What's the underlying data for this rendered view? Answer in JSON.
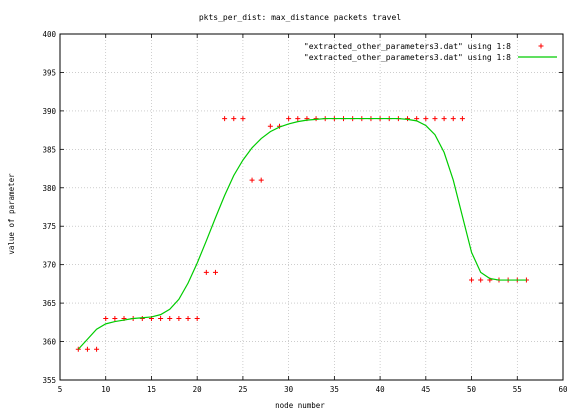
{
  "chart_data": {
    "type": "scatter",
    "title": "pkts_per_dist: max_distance packets travel",
    "xlabel": "node number",
    "ylabel": "value of parameter",
    "xlim": [
      5,
      60
    ],
    "ylim": [
      355,
      400
    ],
    "xticks": [
      5,
      10,
      15,
      20,
      25,
      30,
      35,
      40,
      45,
      50,
      55,
      60
    ],
    "yticks": [
      355,
      360,
      365,
      370,
      375,
      380,
      385,
      390,
      395,
      400
    ],
    "grid": true,
    "legend_position": "top-right",
    "series": [
      {
        "name": "\"extracted_other_parameters3.dat\" using 1:8",
        "style": "points",
        "marker": "plus",
        "color": "#ff0000",
        "x": [
          7,
          8,
          9,
          10,
          11,
          12,
          13,
          14,
          15,
          16,
          17,
          18,
          19,
          20,
          21,
          22,
          23,
          24,
          25,
          26,
          27,
          28,
          29,
          30,
          31,
          32,
          33,
          34,
          35,
          36,
          37,
          38,
          39,
          40,
          41,
          42,
          43,
          44,
          45,
          46,
          47,
          48,
          49,
          50,
          51,
          52,
          53,
          54,
          55,
          56
        ],
        "y": [
          359,
          359,
          359,
          363,
          363,
          363,
          363,
          363,
          363,
          363,
          363,
          363,
          363,
          363,
          369,
          369,
          389,
          389,
          389,
          381,
          381,
          388,
          388,
          389,
          389,
          389,
          389,
          389,
          389,
          389,
          389,
          389,
          389,
          389,
          389,
          389,
          389,
          389,
          389,
          389,
          389,
          389,
          389,
          368,
          368,
          368,
          368,
          368,
          368,
          368
        ]
      },
      {
        "name": "\"extracted_other_parameters3.dat\" using 1:8",
        "style": "smooth-line",
        "color": "#00cc00",
        "x": [
          7,
          8,
          9,
          10,
          11,
          12,
          13,
          14,
          15,
          16,
          17,
          18,
          19,
          20,
          21,
          22,
          23,
          24,
          25,
          26,
          27,
          28,
          29,
          30,
          31,
          32,
          33,
          34,
          35,
          36,
          37,
          38,
          39,
          40,
          41,
          42,
          43,
          44,
          45,
          46,
          47,
          48,
          49,
          50,
          51,
          52,
          53,
          54,
          55,
          56
        ],
        "y": [
          359,
          360.3,
          361.6,
          362.3,
          362.6,
          362.8,
          363,
          363.1,
          363.2,
          363.5,
          364.2,
          365.5,
          367.6,
          370.2,
          373.1,
          376.1,
          379,
          381.6,
          383.6,
          385.2,
          386.4,
          387.3,
          387.9,
          388.3,
          388.6,
          388.8,
          388.9,
          389,
          389,
          389,
          389,
          389,
          389,
          389,
          389,
          389,
          388.9,
          388.7,
          388.1,
          386.9,
          384.6,
          381,
          376.3,
          371.6,
          369,
          368.2,
          368,
          368,
          368,
          368
        ]
      }
    ]
  }
}
